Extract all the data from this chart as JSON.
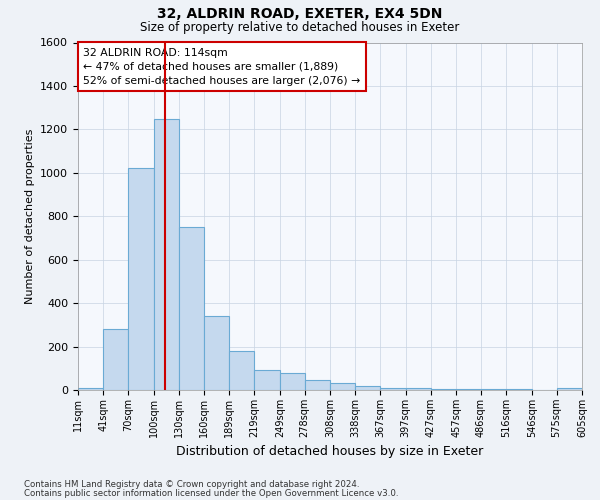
{
  "title1": "32, ALDRIN ROAD, EXETER, EX4 5DN",
  "title2": "Size of property relative to detached houses in Exeter",
  "xlabel": "Distribution of detached houses by size in Exeter",
  "ylabel": "Number of detached properties",
  "footnote1": "Contains HM Land Registry data © Crown copyright and database right 2024.",
  "footnote2": "Contains public sector information licensed under the Open Government Licence v3.0.",
  "annotation_line1": "32 ALDRIN ROAD: 114sqm",
  "annotation_line2": "← 47% of detached houses are smaller (1,889)",
  "annotation_line3": "52% of semi-detached houses are larger (2,076) →",
  "bar_color": "#c5d9ee",
  "bar_edge_color": "#6aaad4",
  "vline_color": "#cc0000",
  "annotation_box_edge_color": "#cc0000",
  "bins": [
    11,
    41,
    70,
    100,
    130,
    160,
    189,
    219,
    249,
    278,
    308,
    338,
    367,
    397,
    427,
    457,
    486,
    516,
    546,
    575,
    605
  ],
  "counts": [
    10,
    280,
    1020,
    1250,
    750,
    340,
    180,
    90,
    80,
    45,
    30,
    20,
    10,
    10,
    5,
    5,
    3,
    3,
    0,
    10
  ],
  "vline_x": 114,
  "ylim": [
    0,
    1600
  ],
  "yticks": [
    0,
    200,
    400,
    600,
    800,
    1000,
    1200,
    1400,
    1600
  ],
  "background_color": "#eef2f7",
  "plot_background_color": "#f5f8fd",
  "grid_color": "#c8d4e3"
}
